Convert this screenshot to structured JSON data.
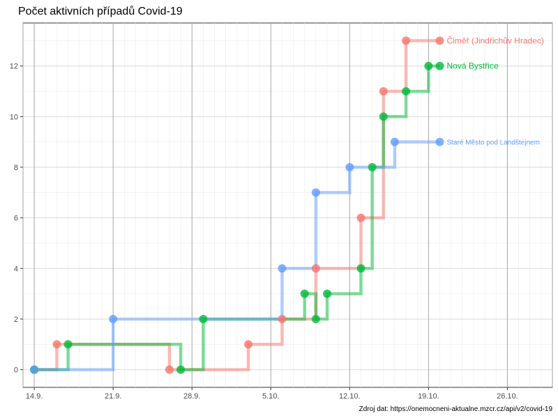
{
  "chart_data": {
    "type": "line",
    "title": "Počet aktivních případů Covid-19",
    "caption": "Zdroj dat: https://onemocneni-aktualne.mzcr.cz/api/v2/covid-19",
    "xlabel": "",
    "ylabel": "",
    "x_ticks": [
      "14.9.",
      "21.9.",
      "28.9.",
      "5.10.",
      "12.10.",
      "19.10.",
      "26.10."
    ],
    "xlim": [
      "2020-09-13",
      "2020-10-30"
    ],
    "ylim": [
      -0.7,
      13.7
    ],
    "y_ticks": [
      0,
      2,
      4,
      6,
      8,
      10,
      12
    ],
    "grid": true,
    "step": true,
    "legend": "none; series labels placed at line ends",
    "series": [
      {
        "name": "Čiměř (Jindřichův Hradec)",
        "color": "#F8766D",
        "points": [
          {
            "date": "2020-09-14",
            "value": 0
          },
          {
            "date": "2020-09-16",
            "value": 1
          },
          {
            "date": "2020-09-26",
            "value": 0
          },
          {
            "date": "2020-10-03",
            "value": 1
          },
          {
            "date": "2020-10-06",
            "value": 2
          },
          {
            "date": "2020-10-09",
            "value": 4
          },
          {
            "date": "2020-10-13",
            "value": 6
          },
          {
            "date": "2020-10-15",
            "value": 11
          },
          {
            "date": "2020-10-17",
            "value": 13
          },
          {
            "date": "2020-10-20",
            "value": 13
          }
        ]
      },
      {
        "name": "Nová Bystřice",
        "color": "#00BA38",
        "points": [
          {
            "date": "2020-09-14",
            "value": 0
          },
          {
            "date": "2020-09-17",
            "value": 1
          },
          {
            "date": "2020-09-27",
            "value": 0
          },
          {
            "date": "2020-09-29",
            "value": 2
          },
          {
            "date": "2020-10-08",
            "value": 3
          },
          {
            "date": "2020-10-09",
            "value": 2
          },
          {
            "date": "2020-10-10",
            "value": 3
          },
          {
            "date": "2020-10-13",
            "value": 4
          },
          {
            "date": "2020-10-14",
            "value": 8
          },
          {
            "date": "2020-10-15",
            "value": 10
          },
          {
            "date": "2020-10-17",
            "value": 11
          },
          {
            "date": "2020-10-19",
            "value": 12
          },
          {
            "date": "2020-10-20",
            "value": 12
          }
        ]
      },
      {
        "name": "Staré Město pod Landštejnem",
        "color": "#619CFF",
        "points": [
          {
            "date": "2020-09-14",
            "value": 0
          },
          {
            "date": "2020-09-21",
            "value": 2
          },
          {
            "date": "2020-10-06",
            "value": 4
          },
          {
            "date": "2020-10-09",
            "value": 7
          },
          {
            "date": "2020-10-12",
            "value": 8
          },
          {
            "date": "2020-10-16",
            "value": 9
          },
          {
            "date": "2020-10-20",
            "value": 9
          }
        ]
      }
    ],
    "series_label_font_sizes": [
      "12",
      "12",
      "10"
    ]
  }
}
